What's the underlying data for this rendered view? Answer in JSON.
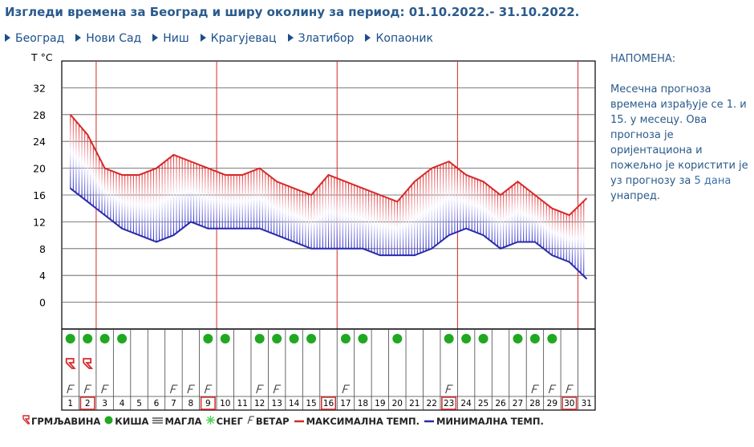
{
  "page": {
    "title": "Изгледи времена за Београд и ширу околину за период: 01.10.2022.- 31.10.2022."
  },
  "nav": [
    {
      "label": "Београд"
    },
    {
      "label": "Нови Сад"
    },
    {
      "label": "Ниш"
    },
    {
      "label": "Крагујевац"
    },
    {
      "label": "Златибор"
    },
    {
      "label": "Копаоник"
    }
  ],
  "note": {
    "title": "НАПОМЕНА:",
    "text_before_link": "Месечна прогноза времена израђује се 1. и 15. у месецу. Ова прогноза је оријентациона и пожељно је користити је уз прогнозу за ",
    "link": "5 дана",
    "text_after_link": " унапред."
  },
  "legend": [
    {
      "label": "ГРМЉАВИНА",
      "symbol": "thunder-icon",
      "color": "#d42a2a"
    },
    {
      "label": "КИША",
      "symbol": "rain-icon",
      "color": "#21a821"
    },
    {
      "label": "МАГЛА",
      "symbol": "fog-icon",
      "color": "#333333"
    },
    {
      "label": "СНЕГ",
      "symbol": "snow-icon",
      "color": "#4fd45a"
    },
    {
      "label": "ВЕТАР",
      "symbol": "wind-icon",
      "color": "#333333"
    },
    {
      "label": "МАКСИМАЛНА ТЕМП.",
      "symbol": "max-line",
      "color": "#d42a2a"
    },
    {
      "label": "МИНИМАЛНА ТЕМП.",
      "symbol": "min-line",
      "color": "#2a2aa8"
    }
  ],
  "chart_data": {
    "type": "area",
    "title": "",
    "ylabel": "T °C",
    "ylim": [
      -4,
      36
    ],
    "yticks": [
      0,
      4,
      8,
      12,
      16,
      20,
      24,
      28,
      32
    ],
    "grid": true,
    "x": [
      1,
      2,
      3,
      4,
      5,
      6,
      7,
      8,
      9,
      10,
      11,
      12,
      13,
      14,
      15,
      16,
      17,
      18,
      19,
      20,
      21,
      22,
      23,
      24,
      25,
      26,
      27,
      28,
      29,
      30,
      31
    ],
    "highlighted_days": [
      2,
      9,
      16,
      23,
      30
    ],
    "week_separator_after_days": [
      2,
      9,
      16,
      23,
      30
    ],
    "series": [
      {
        "name": "МАКСИМАЛНА ТЕМП.",
        "color": "#d42a2a",
        "values": [
          28,
          25,
          20,
          19,
          19,
          20,
          22,
          21,
          20,
          19,
          19,
          20,
          18,
          17,
          16,
          19,
          18,
          17,
          16,
          15,
          18,
          20,
          21,
          19,
          18,
          16,
          18,
          16,
          14,
          13,
          15.5
        ]
      },
      {
        "name": "МИНИМАЛНА ТЕМП.",
        "color": "#2a2aa8",
        "values": [
          17,
          15,
          13,
          11,
          10,
          9,
          10,
          12,
          11,
          11,
          11,
          11,
          10,
          9,
          8,
          8,
          8,
          8,
          7,
          7,
          7,
          8,
          10,
          11,
          10,
          8,
          9,
          9,
          7,
          6,
          3.5
        ]
      }
    ],
    "events": {
      "rain": [
        1,
        2,
        3,
        4,
        9,
        10,
        12,
        13,
        14,
        15,
        17,
        18,
        20,
        23,
        24,
        25,
        27,
        28,
        29
      ],
      "thunder": [
        1,
        2
      ],
      "wind": [
        1,
        2,
        3,
        7,
        8,
        9,
        12,
        13,
        17,
        23,
        28,
        29,
        30
      ],
      "fog": [],
      "snow": []
    }
  }
}
